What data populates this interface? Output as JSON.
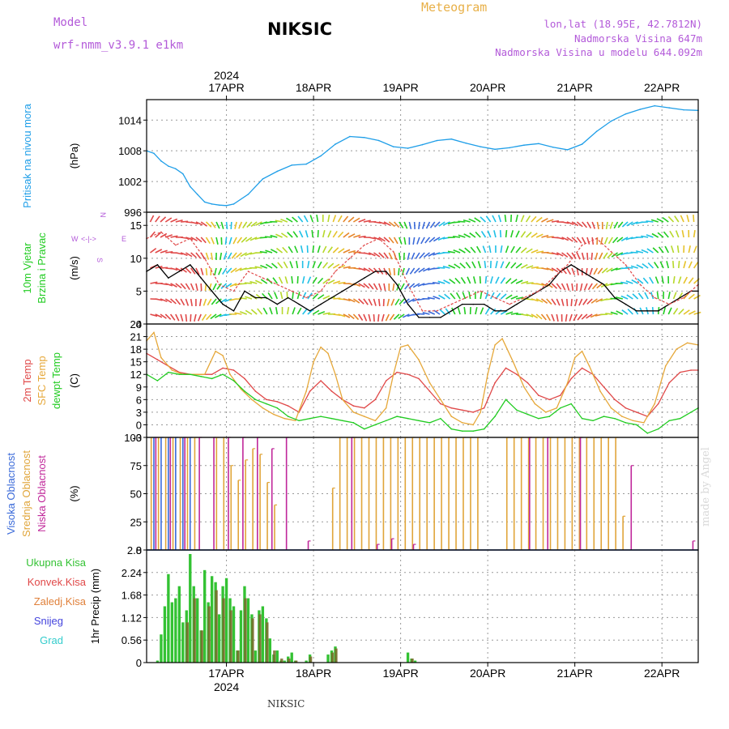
{
  "header": {
    "model_label": "Model",
    "model_name": "wrf-nmm_v3.9.1 e1km",
    "station": "NIKSIC",
    "title": "Meteogram",
    "coords": "lon,lat (18.95E, 42.7812N)",
    "elevation": "Nadmorska Visina 647m",
    "model_elevation": "Nadmorska Visina u modelu 644.092m",
    "footer_station": "NIKSIC",
    "signature": "made by Angel"
  },
  "time_axis": {
    "year": "2024",
    "day_labels": [
      "17APR",
      "18APR",
      "19APR",
      "20APR",
      "21APR",
      "22APR"
    ],
    "start_hour": -10,
    "end_hour": 142
  },
  "colors": {
    "pressure": "#1e9ee8",
    "t2m": "#e04848",
    "tsfc": "#e6a83a",
    "dewpoint": "#22cc22",
    "cloud_high": "#3a6ad9",
    "cloud_mid": "#e0a53a",
    "cloud_low": "#c0279a",
    "precip_total": "#33c233",
    "precip_conv": "#e04848",
    "precip_large": "#e0803a",
    "snow": "#4444dd",
    "graupel": "#33cccc",
    "wind_speed": "#000000",
    "gust": "#e04848"
  },
  "chart_data": [
    {
      "type": "line",
      "panel": "pressure",
      "ylabel_main": "Pritisak na nivou mora",
      "ylabel_unit": "(hPa)",
      "ylim": [
        996,
        1018
      ],
      "yticks": [
        "996",
        "1002",
        "1008",
        "1014"
      ],
      "grid": true,
      "series": [
        {
          "hours": [
            -10,
            -8,
            -6,
            -4,
            -2,
            0,
            2,
            4,
            6,
            8,
            10,
            12,
            14,
            18,
            22,
            26,
            30,
            34,
            38,
            42,
            46,
            50,
            54,
            58,
            62,
            66,
            70,
            74,
            78,
            82,
            86,
            90,
            94,
            98,
            102,
            106,
            110,
            114,
            118,
            122,
            126,
            130,
            134,
            138,
            142
          ],
          "values": [
            1008,
            1007.5,
            1006,
            1005,
            1004.5,
            1003.5,
            1001,
            999.5,
            998,
            997.6,
            997.4,
            997.3,
            997.6,
            999.5,
            1002.5,
            1004,
            1005.2,
            1005.4,
            1007,
            1009.3,
            1010.8,
            1010.6,
            1010,
            1008.8,
            1008.5,
            1009.2,
            1010,
            1010.3,
            1009.5,
            1008.8,
            1008.3,
            1008.6,
            1009.1,
            1009.4,
            1008.7,
            1008.2,
            1009.3,
            1011.8,
            1013.8,
            1015.2,
            1016.1,
            1016.8,
            1016.4,
            1016.0,
            1015.9
          ]
        }
      ]
    },
    {
      "type": "line",
      "panel": "wind",
      "ylabel_main": "10m Vjetar",
      "ylabel_main2": "Brzina i Pravac",
      "ylabel_unit": "(m/s)",
      "compass": [
        "W",
        "<-|->",
        "E",
        "N",
        "S"
      ],
      "ylim": [
        0,
        17
      ],
      "yticks": [
        "0",
        "5",
        "10",
        "15"
      ],
      "grid": true,
      "series": [
        {
          "name": "speed",
          "hours": [
            -10,
            -7,
            -4,
            -1,
            2,
            5,
            8,
            11,
            14,
            17,
            20,
            23,
            26,
            29,
            32,
            35,
            38,
            41,
            44,
            47,
            50,
            53,
            56,
            59,
            62,
            65,
            68,
            71,
            74,
            77,
            80,
            83,
            86,
            89,
            92,
            95,
            98,
            101,
            104,
            107,
            110,
            113,
            116,
            119,
            122,
            125,
            128,
            131,
            134,
            137,
            140,
            142
          ],
          "values": [
            8,
            9,
            7,
            8,
            9,
            7,
            5,
            3,
            2,
            5,
            4,
            4,
            3,
            4,
            3,
            2,
            3,
            4,
            5,
            6,
            7,
            8,
            8,
            6,
            3,
            1,
            1,
            1,
            2,
            3,
            3,
            3,
            2,
            2,
            3,
            4,
            5,
            6,
            8,
            9,
            8,
            7,
            6,
            4,
            3,
            2,
            2,
            2,
            3,
            4,
            5,
            5
          ]
        },
        {
          "name": "gust",
          "hours": [
            -10,
            -6,
            -2,
            2,
            6,
            10,
            14,
            18,
            22,
            26,
            30,
            34,
            38,
            42,
            46,
            50,
            54,
            58,
            62,
            66,
            70,
            74,
            78,
            82,
            86,
            90,
            94,
            98,
            102,
            106,
            110,
            114,
            118,
            122,
            126,
            130,
            134,
            138,
            142
          ],
          "values": [
            13,
            14,
            12,
            13,
            10,
            6,
            5,
            8,
            7,
            6,
            5,
            4,
            5,
            8,
            10,
            12,
            13,
            11,
            6,
            2,
            2,
            3,
            4,
            5,
            4,
            3,
            4,
            5,
            7,
            9,
            12,
            13,
            11,
            9,
            6,
            4,
            3,
            4,
            6
          ]
        }
      ]
    },
    {
      "type": "line",
      "panel": "temperature",
      "ylabel_main": "2m Temp",
      "ylabel_main2": "SFC Temp",
      "ylabel_main3": "dewpt Temp",
      "ylabel_unit": "(C)",
      "ylim": [
        -3,
        24
      ],
      "yticks": [
        "-3",
        "0",
        "3",
        "6",
        "9",
        "12",
        "15",
        "18",
        "21",
        "24"
      ],
      "grid": true,
      "series": [
        {
          "name": "2m Temp",
          "hours": [
            -10,
            -7,
            -4,
            -1,
            2,
            5,
            8,
            11,
            14,
            17,
            20,
            23,
            26,
            29,
            32,
            35,
            38,
            41,
            44,
            47,
            50,
            53,
            56,
            59,
            62,
            65,
            68,
            71,
            74,
            77,
            80,
            83,
            86,
            89,
            92,
            95,
            98,
            101,
            104,
            107,
            110,
            113,
            116,
            119,
            122,
            125,
            128,
            131,
            134,
            137,
            140,
            142
          ],
          "values": [
            17,
            15.5,
            14,
            12.5,
            12,
            12,
            12,
            13.5,
            13,
            11,
            8,
            6,
            5.5,
            4.5,
            3,
            8,
            10.5,
            8,
            6,
            4.5,
            4,
            6,
            10.5,
            12.5,
            12,
            11,
            8,
            5,
            4,
            3.5,
            3,
            4,
            10,
            13.5,
            12,
            10,
            7,
            6,
            7,
            11,
            13.5,
            12,
            9,
            6,
            4,
            3,
            2,
            5,
            10,
            12.5,
            13,
            13
          ]
        },
        {
          "name": "SFC Temp",
          "hours": [
            -10,
            -8,
            -6,
            -3,
            0,
            3,
            6,
            9,
            11,
            13,
            16,
            19,
            22,
            25,
            28,
            31,
            34,
            36,
            38,
            40,
            42,
            44,
            47,
            50,
            53,
            56,
            58,
            60,
            62,
            65,
            68,
            71,
            74,
            77,
            80,
            82,
            84,
            86,
            88,
            91,
            94,
            97,
            100,
            103,
            106,
            108,
            110,
            112,
            115,
            118,
            121,
            124,
            127,
            130,
            133,
            136,
            139,
            142
          ],
          "values": [
            20,
            22,
            16,
            13,
            12,
            12,
            12,
            17.5,
            16.5,
            12,
            8.5,
            6,
            4,
            2.5,
            1.5,
            1,
            8,
            15,
            18.5,
            17,
            12,
            6,
            3,
            2,
            1,
            4,
            12,
            18.5,
            19,
            15.5,
            10,
            6,
            2,
            0.5,
            0,
            3,
            12,
            19,
            20.5,
            15,
            9,
            5,
            3,
            4,
            10,
            16,
            17.5,
            14,
            8,
            4,
            2,
            1,
            0.5,
            5,
            14,
            18,
            19.5,
            19
          ]
        },
        {
          "name": "dewpt Temp",
          "hours": [
            -10,
            -7,
            -4,
            -1,
            2,
            5,
            8,
            11,
            14,
            17,
            20,
            23,
            26,
            29,
            32,
            35,
            38,
            41,
            44,
            47,
            50,
            53,
            56,
            59,
            62,
            65,
            68,
            71,
            74,
            77,
            80,
            83,
            86,
            89,
            92,
            95,
            98,
            101,
            104,
            107,
            110,
            113,
            116,
            119,
            122,
            125,
            128,
            131,
            134,
            137,
            140,
            142
          ],
          "values": [
            12,
            10.5,
            12.5,
            12,
            12,
            11.5,
            11,
            12,
            10.5,
            8,
            6,
            5,
            4,
            2,
            1,
            1.5,
            2,
            1.5,
            1,
            0.5,
            -1,
            0,
            1,
            2,
            1.5,
            1,
            0.5,
            1.5,
            -1,
            -1.5,
            -1.5,
            -1,
            2,
            6,
            3.5,
            2.5,
            1.5,
            2,
            4,
            5,
            1.5,
            1,
            2,
            1.5,
            0.5,
            0,
            -2,
            -1,
            1,
            1.5,
            3,
            4
          ]
        }
      ]
    },
    {
      "type": "bar",
      "panel": "clouds",
      "ylabel_main": "Visoka Oblacnost",
      "ylabel_main2": "Srednja Oblacnost",
      "ylabel_main3": "Niska Oblacnost",
      "ylabel_unit": "(%)",
      "ylim": [
        0,
        100
      ],
      "yticks": [
        "0",
        "25",
        "50",
        "75",
        "100"
      ],
      "grid": true,
      "series": [
        {
          "name": "Visoka Oblacnost",
          "hours": [
            -8,
            -6,
            -4,
            -2,
            0,
            2
          ],
          "values": [
            100,
            100,
            100,
            100,
            100,
            100
          ]
        },
        {
          "name": "Srednja Oblacnost",
          "hours": [
            -9,
            -7,
            -5,
            -3,
            -1,
            1,
            3,
            9,
            11,
            13,
            15,
            17,
            19,
            21,
            23,
            25,
            41,
            43,
            45,
            47,
            49,
            51,
            53,
            55,
            57,
            59,
            61,
            63,
            65,
            67,
            69,
            71,
            73,
            75,
            77,
            79,
            81,
            89,
            91,
            93,
            95,
            97,
            99,
            101,
            103,
            105,
            107,
            109,
            111,
            113,
            115,
            117,
            119,
            121
          ],
          "values": [
            100,
            100,
            100,
            100,
            100,
            100,
            100,
            100,
            100,
            75,
            62,
            80,
            90,
            85,
            60,
            40,
            55,
            100,
            100,
            100,
            100,
            100,
            100,
            100,
            100,
            100,
            100,
            100,
            100,
            100,
            100,
            100,
            100,
            100,
            100,
            100,
            100,
            100,
            100,
            100,
            100,
            100,
            100,
            100,
            100,
            100,
            100,
            100,
            100,
            100,
            100,
            100,
            100,
            30
          ]
        },
        {
          "name": "Niska Oblacnost",
          "hours": [
            -8,
            -4,
            0,
            4,
            8,
            12,
            16,
            20,
            24,
            28,
            34,
            46,
            53,
            57,
            63,
            95,
            100,
            109,
            123,
            140
          ],
          "values": [
            100,
            100,
            100,
            100,
            100,
            100,
            100,
            100,
            90,
            100,
            8,
            100,
            5,
            10,
            5,
            100,
            100,
            100,
            75,
            8
          ]
        }
      ]
    },
    {
      "type": "bar",
      "panel": "precipitation",
      "ylabel_unit": "1hr Precip (mm)",
      "legend": [
        "Ukupna Kisa",
        "Konvek.Kisa",
        "Zaledj.Kisa",
        "Snijeg",
        "Grad"
      ],
      "ylim": [
        0,
        2.8
      ],
      "yticks": [
        "0",
        "0.56",
        "1.12",
        "1.68",
        "2.24",
        "2.8"
      ],
      "grid": true,
      "series": [
        {
          "name": "Ukupna Kisa",
          "hours": [
            -7,
            -6,
            -5,
            -4,
            -3,
            -2,
            -1,
            0,
            1,
            2,
            3,
            4,
            5,
            6,
            7,
            8,
            9,
            10,
            11,
            12,
            13,
            14,
            15,
            16,
            17,
            18,
            19,
            20,
            21,
            22,
            23,
            24,
            25,
            26,
            27,
            28,
            29,
            30,
            31,
            34,
            35,
            40,
            41,
            42,
            62,
            63,
            64
          ],
          "values": [
            0.05,
            0.7,
            1.4,
            2.2,
            1.5,
            1.6,
            1.9,
            1.0,
            1.3,
            2.7,
            1.9,
            1.6,
            0.8,
            2.3,
            1.5,
            2.15,
            2.0,
            1.2,
            1.9,
            2.1,
            1.6,
            1.4,
            0.3,
            1.3,
            1.9,
            1.6,
            1.2,
            0.3,
            1.3,
            1.4,
            1.1,
            0.6,
            0.2,
            0.3,
            0.05,
            0.05,
            0.15,
            0.25,
            0.05,
            0.05,
            0.2,
            0.2,
            0.3,
            0.4,
            0.25,
            0.1,
            0.05
          ]
        },
        {
          "name": "Zaledj.Kisa",
          "hours": [
            1,
            3,
            5,
            7,
            9,
            11,
            13,
            15,
            17,
            19,
            21,
            23,
            25,
            27,
            29,
            31,
            35,
            41,
            42,
            63
          ],
          "values": [
            1.0,
            1.6,
            0.8,
            1.4,
            1.8,
            1.6,
            1.3,
            0.3,
            1.6,
            1.1,
            1.2,
            1.0,
            0.3,
            0.1,
            0.1,
            0.05,
            0.15,
            0.25,
            0.35,
            0.1
          ]
        }
      ]
    }
  ]
}
